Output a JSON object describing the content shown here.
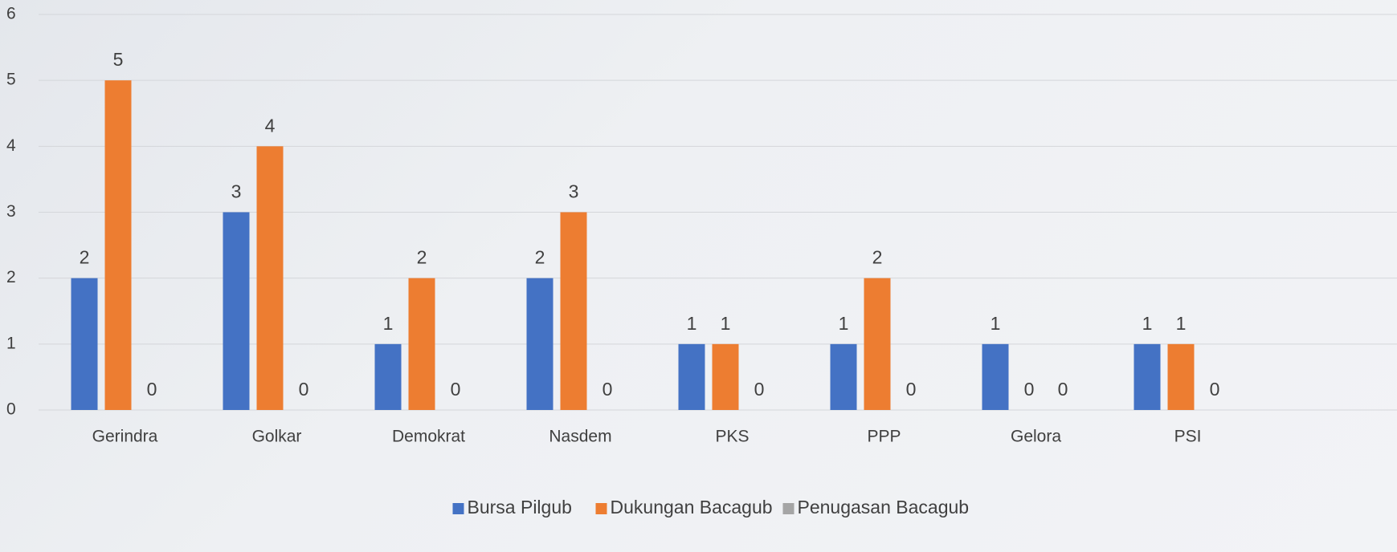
{
  "chart_data": {
    "type": "bar",
    "categories": [
      "Gerindra",
      "Golkar",
      "Demokrat",
      "Nasdem",
      "PKS",
      "PPP",
      "Gelora",
      "PSI"
    ],
    "series": [
      {
        "name": "Bursa Pilgub",
        "color": "#4472c4",
        "values": [
          2,
          3,
          1,
          2,
          1,
          1,
          1,
          1
        ]
      },
      {
        "name": "Dukungan Bacagub",
        "color": "#ed7d31",
        "values": [
          5,
          4,
          2,
          3,
          1,
          2,
          0,
          1
        ]
      },
      {
        "name": "Penugasan Bacagub",
        "color": "#a5a5a5",
        "values": [
          0,
          0,
          0,
          0,
          0,
          0,
          0,
          0
        ]
      }
    ],
    "ylim": [
      0,
      6
    ],
    "yticks": [
      0,
      1,
      2,
      3,
      4,
      5,
      6
    ],
    "grid": true,
    "legend": "bottom"
  }
}
